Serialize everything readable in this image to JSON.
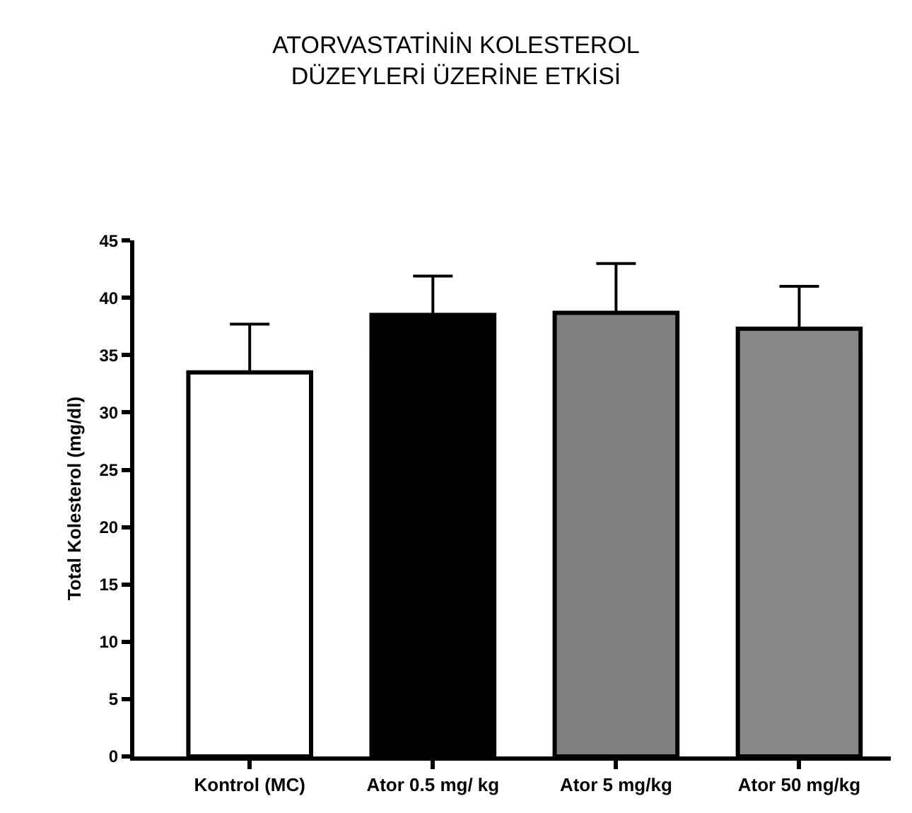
{
  "chart_data": {
    "type": "bar",
    "title": "ATORVASTATİNİN KOLESTEROL\nDÜZEYLERİ ÜZERİNE ETKİSİ",
    "ylabel": "Total Kolesterol (mg/dl)",
    "categories": [
      "Kontrol (MC)",
      "Ator 0.5 mg/ kg",
      "Ator 5 mg/kg",
      "Ator 50 mg/kg"
    ],
    "values": [
      33.5,
      38.5,
      38.7,
      37.3
    ],
    "colors": [
      "#ffffff",
      "#000000",
      "#808080",
      "#888888"
    ],
    "errors": [
      [
        33.5,
        37.7
      ],
      [
        38.5,
        41.9
      ],
      [
        38.7,
        43.0
      ],
      [
        37.3,
        41.0
      ]
    ],
    "ylim": [
      0,
      45
    ],
    "yticks": [
      0,
      5,
      10,
      15,
      20,
      25,
      30,
      35,
      40,
      45
    ]
  }
}
